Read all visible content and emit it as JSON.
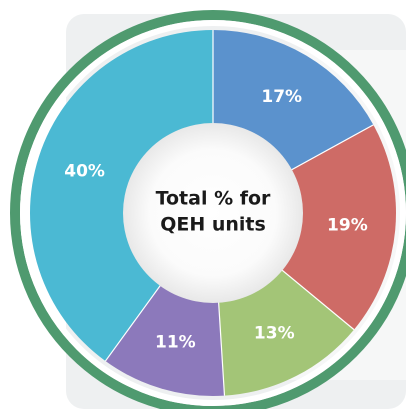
{
  "chart_data": {
    "type": "pie",
    "title": "Total % for QEH units",
    "title_lines": [
      "Total % for",
      "QEH units"
    ],
    "slices": [
      {
        "label": "17%",
        "value": 17,
        "color": "#5b92cd"
      },
      {
        "label": "19%",
        "value": 19,
        "color": "#ce6b66"
      },
      {
        "label": "13%",
        "value": 13,
        "color": "#a3c577"
      },
      {
        "label": "11%",
        "value": 11,
        "color": "#8c79bb"
      },
      {
        "label": "40%",
        "value": 40,
        "color": "#4bb9d3"
      }
    ],
    "ring_color": "#4f9a6f",
    "hole_color": "#ffffff"
  }
}
